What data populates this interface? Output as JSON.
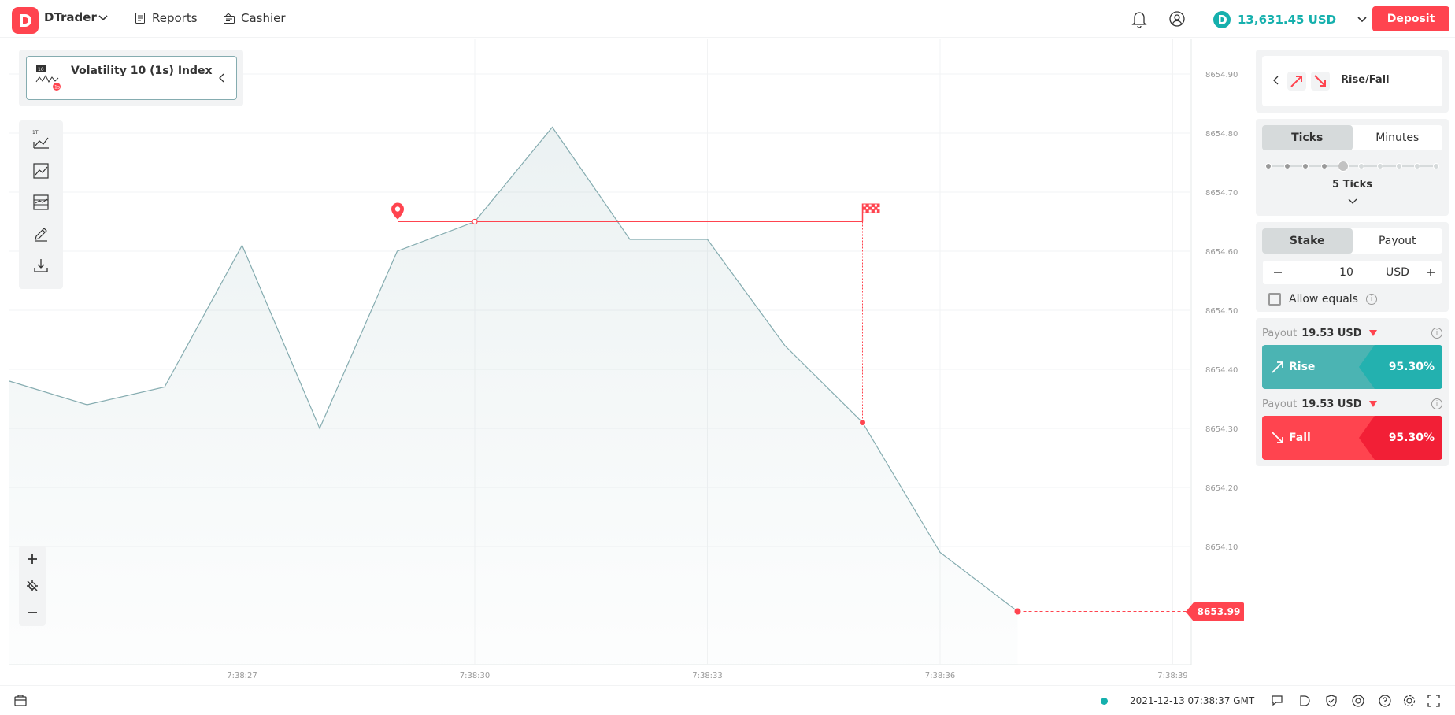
{
  "header": {
    "app_name": "DTrader",
    "nav": [
      {
        "label": "Reports",
        "icon": "reports-icon"
      },
      {
        "label": "Cashier",
        "icon": "cashier-icon"
      }
    ],
    "balance": "13,631.45 USD",
    "deposit_label": "Deposit",
    "colors": {
      "accent": "#ff444f",
      "balance": "#15b0ad"
    }
  },
  "asset": {
    "name": "Volatility 10 (1s) Index",
    "badge": "1s"
  },
  "chart_data": {
    "type": "line",
    "x": [
      "7:38:24",
      "7:38:25",
      "7:38:26",
      "7:38:27",
      "7:38:28",
      "7:38:29",
      "7:38:30",
      "7:38:31",
      "7:38:32",
      "7:38:33",
      "7:38:34",
      "7:38:35",
      "7:38:36",
      "7:38:37"
    ],
    "values": [
      8654.38,
      8654.34,
      8654.37,
      8654.61,
      8654.3,
      8654.6,
      8654.65,
      8654.81,
      8654.62,
      8654.62,
      8654.44,
      8654.31,
      8654.09,
      8653.99
    ],
    "yticks": [
      "8654.90",
      "8654.80",
      "8654.70",
      "8654.60",
      "8654.50",
      "8654.40",
      "8654.30",
      "8654.20",
      "8654.10"
    ],
    "xticks": [
      "7:38:27",
      "7:38:30",
      "7:38:33",
      "7:38:36",
      "7:38:39"
    ],
    "ylim": [
      8653.9,
      8654.96
    ],
    "entry_price": 8654.65,
    "entry_time_index": 6,
    "exit_time_index": 11,
    "current_price": "8653.99",
    "grid": true,
    "line_color": "#85acb0"
  },
  "sidebar": {
    "trade_type": "Rise/Fall",
    "duration_tabs": [
      "Ticks",
      "Minutes"
    ],
    "duration_active": 0,
    "ticks_count": 10,
    "ticks_selected": 5,
    "ticks_label": "5 Ticks",
    "amount_tabs": [
      "Stake",
      "Payout"
    ],
    "amount_active": 0,
    "stake_value": "10",
    "currency": "USD",
    "allow_equals": "Allow equals",
    "payout_label": "Payout",
    "rise": {
      "payout": "19.53 USD",
      "label": "Rise",
      "percent": "95.30%",
      "color": "#4bb4b3"
    },
    "fall": {
      "payout": "19.53 USD",
      "label": "Fall",
      "percent": "95.30%",
      "color": "#ff444f"
    }
  },
  "footer": {
    "timestamp": "2021-12-13 07:38:37 GMT"
  }
}
